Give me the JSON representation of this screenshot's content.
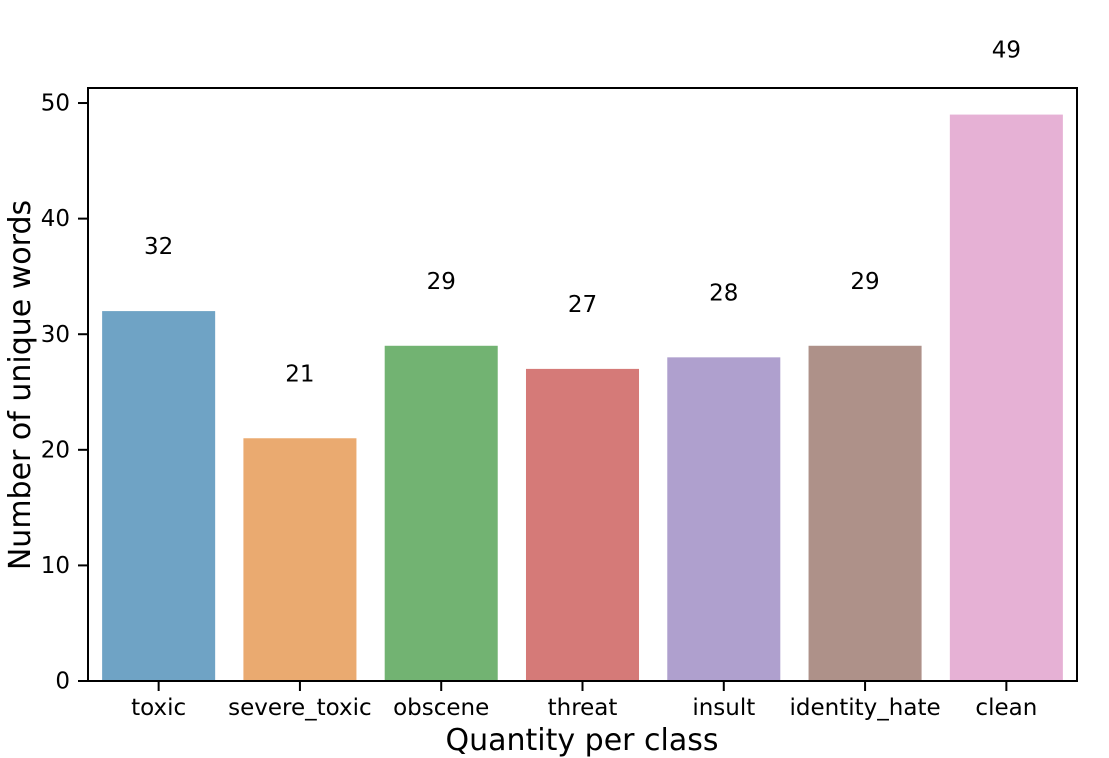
{
  "chart_data": {
    "type": "bar",
    "title": "",
    "xlabel": "Quantity per class",
    "ylabel": "Number of unique words",
    "categories": [
      "toxic",
      "severe_toxic",
      "obscene",
      "threat",
      "insult",
      "identity_hate",
      "clean"
    ],
    "values": [
      32,
      21,
      29,
      27,
      28,
      29,
      49
    ],
    "value_labels": [
      "32",
      "21",
      "29",
      "27",
      "28",
      "29",
      "49"
    ],
    "bar_colors": [
      "#6FA3C5",
      "#EAAA70",
      "#72B372",
      "#D57A78",
      "#AFA0CE",
      "#AE9189",
      "#E6B1D5"
    ],
    "yticks": [
      0,
      10,
      20,
      30,
      40,
      50
    ],
    "ylim": [
      0,
      51.3
    ],
    "grid": false,
    "legend": null,
    "spine_color": "#000000",
    "background_color": "#ffffff"
  }
}
